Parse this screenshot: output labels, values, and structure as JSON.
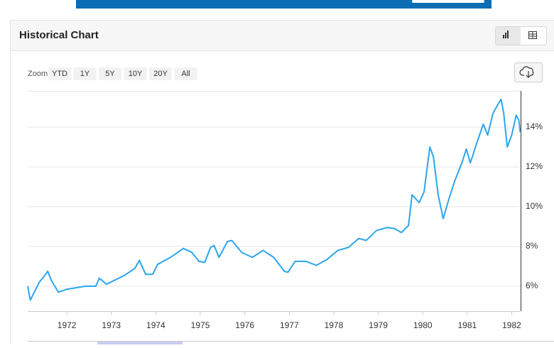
{
  "header": {
    "title": "Historical Chart"
  },
  "zoom": {
    "label": "Zoom",
    "buttons": [
      "YTD",
      "1Y",
      "5Y",
      "10Y",
      "20Y",
      "All"
    ]
  },
  "chart_data": {
    "type": "line",
    "x": [
      1971.12,
      1971.18,
      1971.38,
      1971.49,
      1971.57,
      1971.65,
      1971.81,
      1972.0,
      1972.42,
      1972.65,
      1972.73,
      1972.89,
      1973.3,
      1973.53,
      1973.63,
      1973.77,
      1973.93,
      1974.04,
      1974.33,
      1974.62,
      1974.81,
      1974.97,
      1975.1,
      1975.23,
      1975.31,
      1975.42,
      1975.61,
      1975.71,
      1975.93,
      1976.17,
      1976.41,
      1976.65,
      1976.89,
      1976.97,
      1977.13,
      1977.37,
      1977.61,
      1977.85,
      1978.09,
      1978.33,
      1978.56,
      1978.73,
      1978.96,
      1979.2,
      1979.36,
      1979.52,
      1979.68,
      1979.76,
      1979.92,
      1980.03,
      1980.16,
      1980.24,
      1980.35,
      1980.46,
      1980.59,
      1980.72,
      1980.88,
      1980.98,
      1981.07,
      1981.2,
      1981.36,
      1981.46,
      1981.58,
      1981.68,
      1981.76,
      1981.82,
      1981.9,
      1982.0,
      1982.1,
      1982.16,
      1982.19
    ],
    "series": [
      {
        "color": "#2ba6ea",
        "values": [
          6.0,
          5.3,
          6.2,
          6.5,
          6.75,
          6.3,
          5.7,
          5.85,
          6.0,
          6.0,
          6.4,
          6.1,
          6.55,
          6.9,
          7.3,
          6.6,
          6.6,
          7.1,
          7.45,
          7.9,
          7.7,
          7.25,
          7.2,
          7.95,
          8.05,
          7.45,
          8.25,
          8.3,
          7.7,
          7.45,
          7.8,
          7.45,
          6.75,
          6.7,
          7.25,
          7.25,
          7.05,
          7.35,
          7.8,
          7.95,
          8.4,
          8.3,
          8.8,
          8.95,
          8.9,
          8.7,
          9.05,
          10.6,
          10.2,
          10.75,
          13.0,
          12.5,
          10.55,
          9.4,
          10.4,
          11.3,
          12.2,
          12.9,
          12.2,
          13.1,
          14.15,
          13.6,
          14.7,
          15.1,
          15.4,
          14.7,
          13.0,
          13.6,
          14.6,
          14.35,
          13.75
        ]
      }
    ],
    "xlim": [
      1971.12,
      1982.2
    ],
    "xticks": [
      1972,
      1973,
      1974,
      1975,
      1976,
      1977,
      1978,
      1979,
      1980,
      1981,
      1982
    ],
    "ylim": [
      4.75,
      15.82
    ],
    "yticks": [
      {
        "value": 6,
        "label": "6%"
      },
      {
        "value": 8,
        "label": "8%"
      },
      {
        "value": 10,
        "label": "10%"
      },
      {
        "value": 12,
        "label": "12%"
      },
      {
        "value": 14,
        "label": "14%"
      }
    ],
    "grid": true
  }
}
